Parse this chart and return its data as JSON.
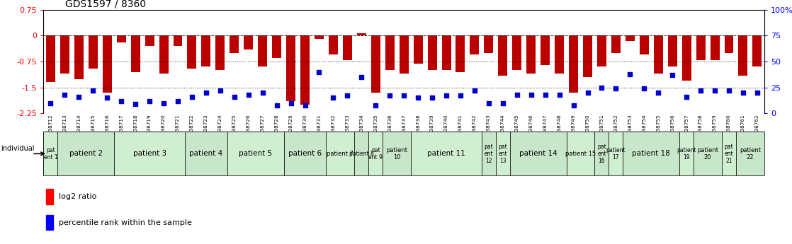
{
  "title": "GDS1597 / 8360",
  "gsm_ids": [
    "GSM38712",
    "GSM38713",
    "GSM38714",
    "GSM38715",
    "GSM38716",
    "GSM38717",
    "GSM38718",
    "GSM38719",
    "GSM38720",
    "GSM38721",
    "GSM38722",
    "GSM38723",
    "GSM38724",
    "GSM38725",
    "GSM38726",
    "GSM38727",
    "GSM38728",
    "GSM38729",
    "GSM38730",
    "GSM38731",
    "GSM38732",
    "GSM38733",
    "GSM38734",
    "GSM38735",
    "GSM38736",
    "GSM38737",
    "GSM38738",
    "GSM38739",
    "GSM38740",
    "GSM38741",
    "GSM38742",
    "GSM38743",
    "GSM38744",
    "GSM38745",
    "GSM38746",
    "GSM38747",
    "GSM38748",
    "GSM38749",
    "GSM38750",
    "GSM38751",
    "GSM38752",
    "GSM38753",
    "GSM38754",
    "GSM38755",
    "GSM38756",
    "GSM38757",
    "GSM38758",
    "GSM38759",
    "GSM38760",
    "GSM38761",
    "GSM38762"
  ],
  "log2_ratio": [
    -1.35,
    -1.1,
    -1.25,
    -0.95,
    -1.65,
    -0.2,
    -1.05,
    -0.3,
    -1.1,
    -0.3,
    -0.95,
    -0.9,
    -1.0,
    -0.5,
    -0.4,
    -0.9,
    -0.65,
    -1.9,
    -2.0,
    -0.1,
    -0.55,
    -0.7,
    0.07,
    -1.65,
    -1.0,
    -1.1,
    -0.8,
    -1.0,
    -1.0,
    -1.05,
    -0.55,
    -0.5,
    -1.15,
    -1.0,
    -1.1,
    -0.85,
    -1.1,
    -1.65,
    -1.2,
    -0.9,
    -0.5,
    -0.15,
    -0.55,
    -1.1,
    -0.9,
    -1.3,
    -0.7,
    -0.7,
    -0.5,
    -1.15,
    -0.9
  ],
  "percentile_rank": [
    10,
    18,
    16,
    22,
    15,
    12,
    9,
    12,
    10,
    12,
    16,
    20,
    22,
    16,
    18,
    20,
    8,
    10,
    8,
    40,
    15,
    17,
    35,
    8,
    17,
    17,
    15,
    15,
    17,
    17,
    22,
    10,
    10,
    18,
    18,
    18,
    18,
    8,
    20,
    25,
    24,
    38,
    24,
    20,
    37,
    16,
    22,
    22,
    22,
    20,
    20
  ],
  "patients": [
    {
      "label": "pat\nent 1",
      "start": 0,
      "end": 0,
      "color": "#d0eed0"
    },
    {
      "label": "patient 2",
      "start": 1,
      "end": 4,
      "color": "#c8e6c9"
    },
    {
      "label": "patient 3",
      "start": 5,
      "end": 9,
      "color": "#d0eed0"
    },
    {
      "label": "patient 4",
      "start": 10,
      "end": 12,
      "color": "#c8e6c9"
    },
    {
      "label": "patient 5",
      "start": 13,
      "end": 16,
      "color": "#d0eed0"
    },
    {
      "label": "patient 6",
      "start": 17,
      "end": 19,
      "color": "#c8e6c9"
    },
    {
      "label": "patient 7",
      "start": 20,
      "end": 21,
      "color": "#d0eed0"
    },
    {
      "label": "patient 8",
      "start": 22,
      "end": 22,
      "color": "#c8e6c9"
    },
    {
      "label": "pat\nent 9",
      "start": 23,
      "end": 23,
      "color": "#d0eed0"
    },
    {
      "label": "patient\n10",
      "start": 24,
      "end": 25,
      "color": "#c8e6c9"
    },
    {
      "label": "patient 11",
      "start": 26,
      "end": 30,
      "color": "#d0eed0"
    },
    {
      "label": "pat\nent\n12",
      "start": 31,
      "end": 31,
      "color": "#c8e6c9"
    },
    {
      "label": "pat\nent\n13",
      "start": 32,
      "end": 32,
      "color": "#d0eed0"
    },
    {
      "label": "patient 14",
      "start": 33,
      "end": 36,
      "color": "#c8e6c9"
    },
    {
      "label": "patient 15",
      "start": 37,
      "end": 38,
      "color": "#d0eed0"
    },
    {
      "label": "pat\nent\n16",
      "start": 39,
      "end": 39,
      "color": "#c8e6c9"
    },
    {
      "label": "patient\n17",
      "start": 40,
      "end": 40,
      "color": "#d0eed0"
    },
    {
      "label": "patient 18",
      "start": 41,
      "end": 44,
      "color": "#c8e6c9"
    },
    {
      "label": "patient\n19",
      "start": 45,
      "end": 45,
      "color": "#d0eed0"
    },
    {
      "label": "patient\n20",
      "start": 46,
      "end": 47,
      "color": "#c8e6c9"
    },
    {
      "label": "pat\nent\n21",
      "start": 48,
      "end": 48,
      "color": "#d0eed0"
    },
    {
      "label": "patient\n22",
      "start": 49,
      "end": 50,
      "color": "#c8e6c9"
    }
  ],
  "y_min": -2.25,
  "y_max": 0.75,
  "hlines": [
    0,
    -0.75,
    -1.5
  ],
  "left_ticks": [
    0.75,
    0,
    -0.75,
    -1.5,
    -2.25
  ],
  "right_ticks": [
    0,
    25,
    50,
    75,
    100
  ],
  "right_tick_labels": [
    "0",
    "25",
    "50",
    "75",
    "100%"
  ],
  "bar_color": "#bb0000",
  "dot_color": "#0000cc",
  "bg_color": "#ffffff"
}
